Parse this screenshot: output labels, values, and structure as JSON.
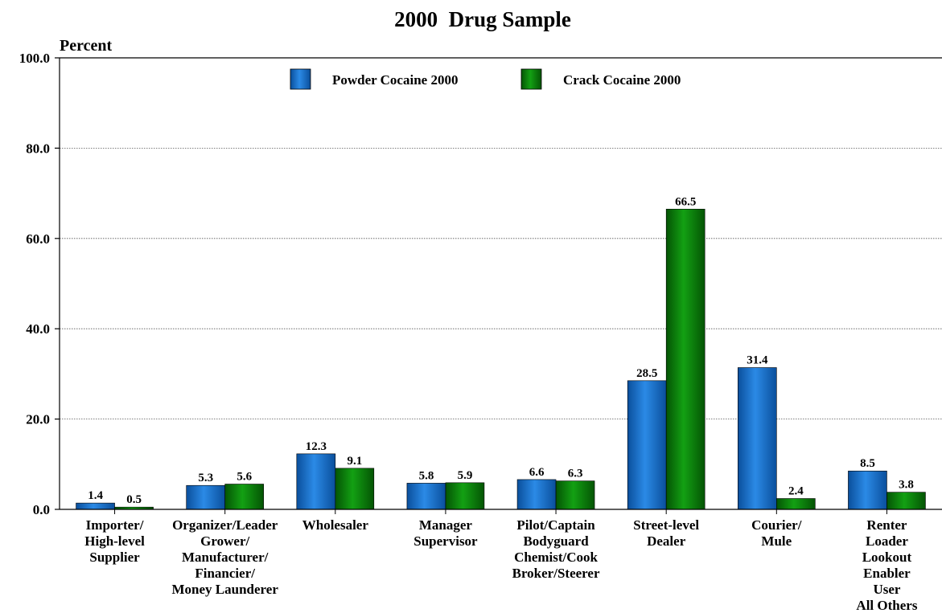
{
  "chart_data": {
    "type": "bar",
    "title": "2000  Drug Sample",
    "ylabel": "Percent",
    "xlabel": "",
    "ylim": [
      0,
      100
    ],
    "yticks": [
      "0.0",
      "20.0",
      "40.0",
      "60.0",
      "80.0",
      "100.0"
    ],
    "grid": "horizontal dotted",
    "legend_placement": "top-center",
    "categories": [
      [
        "Importer/",
        "High-level",
        "Supplier"
      ],
      [
        "Organizer/Leader",
        "Grower/",
        "Manufacturer/",
        "Financier/",
        "Money Launderer"
      ],
      [
        "Wholesaler"
      ],
      [
        "Manager",
        "Supervisor"
      ],
      [
        "Pilot/Captain",
        "Bodyguard",
        "Chemist/Cook",
        "Broker/Steerer"
      ],
      [
        "Street-level",
        "Dealer"
      ],
      [
        "Courier/",
        "Mule"
      ],
      [
        "Renter",
        "Loader",
        "Lookout",
        "Enabler",
        "User",
        "All Others"
      ]
    ],
    "series": [
      {
        "name": "Powder Cocaine 2000",
        "color": "#1f78d1",
        "values": [
          1.4,
          5.3,
          12.3,
          5.8,
          6.6,
          28.5,
          31.4,
          8.5
        ],
        "labels": [
          "1.4",
          "5.3",
          "12.3",
          "5.8",
          "6.6",
          "28.5",
          "31.4",
          "8.5"
        ]
      },
      {
        "name": "Crack Cocaine 2000",
        "color": "#0b8a0b",
        "values": [
          0.5,
          5.6,
          9.1,
          5.9,
          6.3,
          66.5,
          2.4,
          3.8
        ],
        "labels": [
          "0.5",
          "5.6",
          "9.1",
          "5.9",
          "6.3",
          "66.5",
          "2.4",
          "3.8"
        ]
      }
    ]
  }
}
